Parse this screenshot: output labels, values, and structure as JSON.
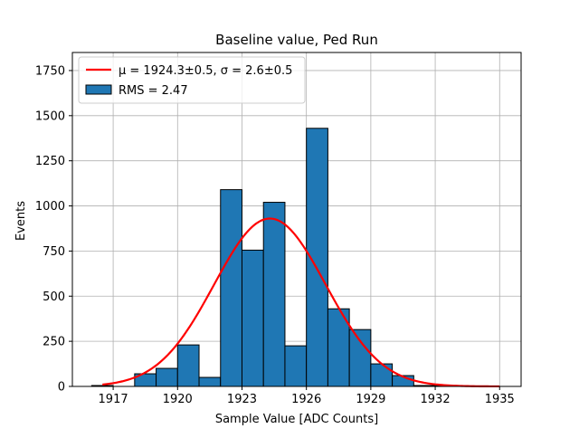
{
  "chart_data": {
    "type": "bar",
    "title": "Baseline value, Ped Run",
    "xlabel": "Sample Value [ADC Counts]",
    "ylabel": "Events",
    "xlim": [
      1915.1,
      1936.0
    ],
    "ylim": [
      0,
      1850
    ],
    "xticks": [
      1917,
      1920,
      1923,
      1926,
      1929,
      1932,
      1935
    ],
    "yticks": [
      0,
      250,
      500,
      750,
      1000,
      1250,
      1500,
      1750
    ],
    "grid": true,
    "bar_color": "#1f77b4",
    "bar_edge_color": "#000000",
    "fit_color": "#ff0000",
    "bins": [
      {
        "left": 1916.0,
        "right": 1917.0,
        "value": 5
      },
      {
        "left": 1917.0,
        "right": 1918.0,
        "value": 0
      },
      {
        "left": 1918.0,
        "right": 1919.0,
        "value": 70
      },
      {
        "left": 1919.0,
        "right": 1920.0,
        "value": 100
      },
      {
        "left": 1920.0,
        "right": 1921.0,
        "value": 230
      },
      {
        "left": 1921.0,
        "right": 1922.0,
        "value": 50
      },
      {
        "left": 1922.0,
        "right": 1923.0,
        "value": 1090
      },
      {
        "left": 1923.0,
        "right": 1924.0,
        "value": 755
      },
      {
        "left": 1924.0,
        "right": 1925.0,
        "value": 1020
      },
      {
        "left": 1925.0,
        "right": 1926.0,
        "value": 225
      },
      {
        "left": 1926.0,
        "right": 1927.0,
        "value": 1430
      },
      {
        "left": 1927.0,
        "right": 1928.0,
        "value": 430
      },
      {
        "left": 1928.0,
        "right": 1929.0,
        "value": 315
      },
      {
        "left": 1929.0,
        "right": 1930.0,
        "value": 125
      },
      {
        "left": 1930.0,
        "right": 1931.0,
        "value": 60
      },
      {
        "left": 1931.0,
        "right": 1932.0,
        "value": 5
      },
      {
        "left": 1932.0,
        "right": 1933.0,
        "value": 5
      }
    ],
    "fit": {
      "type": "gaussian",
      "mu": 1924.3,
      "sigma": 2.6,
      "amplitude": 930,
      "x_range": [
        1916.5,
        1935.0
      ]
    },
    "legend": {
      "location": "upper-left",
      "entries": [
        {
          "kind": "line",
          "label": "μ = 1924.3±0.5, σ = 2.6±0.5"
        },
        {
          "kind": "patch",
          "label": "RMS = 2.47"
        }
      ]
    }
  }
}
